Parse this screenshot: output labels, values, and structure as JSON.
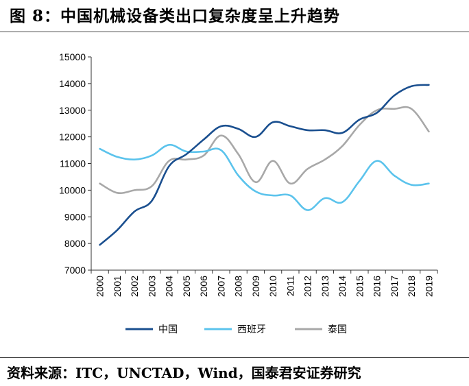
{
  "figure": {
    "title": "图 8：中国机械设备类出口复杂度呈上升趋势",
    "source": "资料来源：ITC，UNCTAD，Wind，国泰君安证券研究"
  },
  "chart_data": {
    "type": "line",
    "categories": [
      "2000",
      "2001",
      "2002",
      "2003",
      "2004",
      "2005",
      "2006",
      "2007",
      "2008",
      "2009",
      "2010",
      "2011",
      "2012",
      "2013",
      "2014",
      "2015",
      "2016",
      "2017",
      "2018",
      "2019"
    ],
    "ylim": [
      7000,
      15000
    ],
    "yticks": [
      7000,
      8000,
      9000,
      10000,
      11000,
      12000,
      13000,
      14000,
      15000
    ],
    "grid": false,
    "legend": "bottom",
    "series": [
      {
        "name": "中国",
        "color": "#1a4f8f",
        "values": [
          7950,
          8500,
          9200,
          9600,
          10900,
          11350,
          11900,
          12400,
          12300,
          12000,
          12550,
          12400,
          12250,
          12250,
          12150,
          12650,
          12900,
          13550,
          13900,
          13950
        ]
      },
      {
        "name": "西班牙",
        "color": "#5bc3ec",
        "values": [
          11550,
          11250,
          11150,
          11300,
          11700,
          11450,
          11450,
          11500,
          10550,
          9950,
          9800,
          9800,
          9250,
          9700,
          9550,
          10350,
          11100,
          10550,
          10200,
          10250
        ]
      },
      {
        "name": "泰国",
        "color": "#a8a8a8",
        "values": [
          10250,
          9900,
          10000,
          10150,
          11100,
          11150,
          11300,
          12050,
          11350,
          10300,
          11100,
          10250,
          10800,
          11150,
          11650,
          12450,
          13000,
          13050,
          13050,
          12200
        ]
      }
    ]
  }
}
